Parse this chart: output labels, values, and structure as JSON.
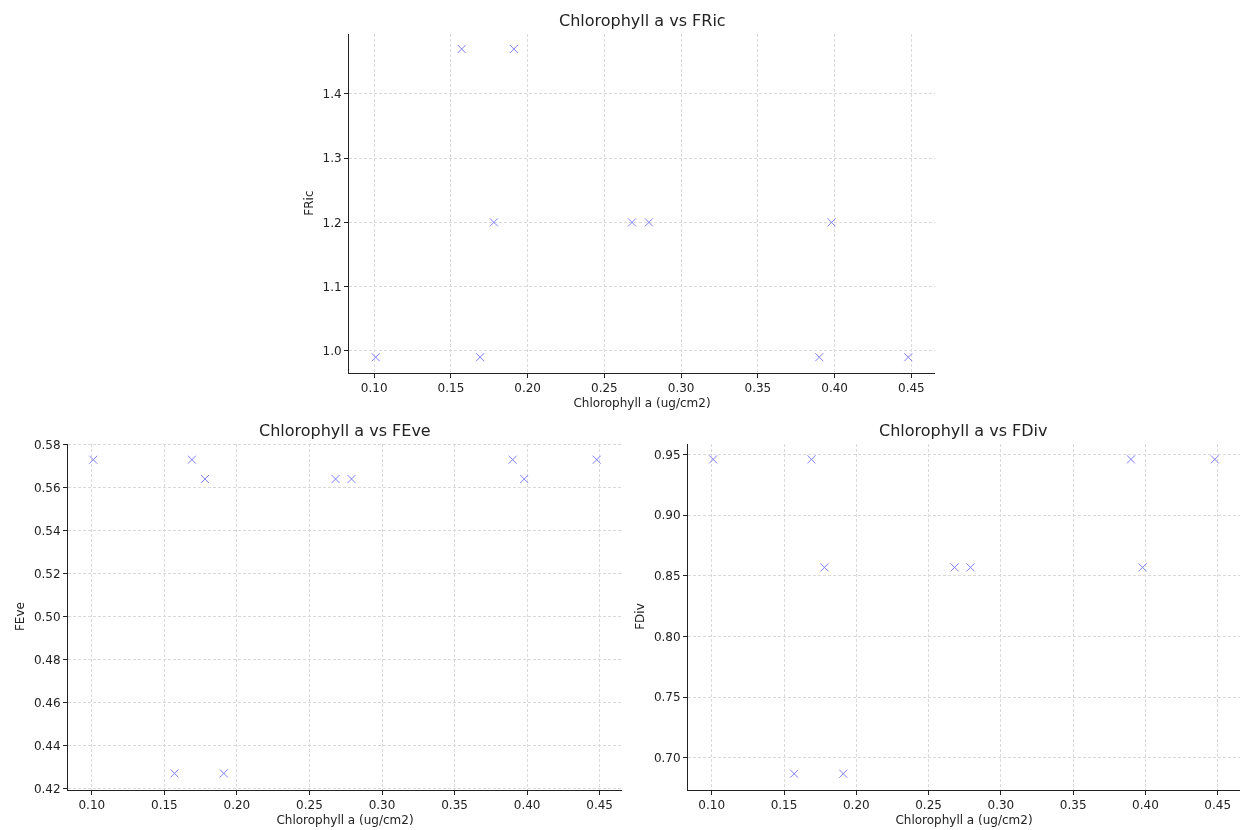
{
  "chart_data": [
    {
      "type": "scatter",
      "title": "Chlorophyll a vs FRic",
      "xlabel": "Chlorophyll a (ug/cm2)",
      "ylabel": "FRic",
      "x": [
        0.101,
        0.157,
        0.169,
        0.178,
        0.191,
        0.268,
        0.279,
        0.39,
        0.398,
        0.448
      ],
      "series": [
        {
          "color": "#8080ff",
          "values": [
            0.99,
            1.47,
            0.99,
            1.2,
            1.47,
            1.2,
            1.2,
            0.99,
            1.2,
            0.99
          ]
        }
      ],
      "xlim": [
        0.0836,
        0.4654
      ],
      "xticks": [
        {
          "value": 0.1,
          "label": "0.10"
        },
        {
          "value": 0.15,
          "label": "0.15"
        },
        {
          "value": 0.2,
          "label": "0.20"
        },
        {
          "value": 0.25,
          "label": "0.25"
        },
        {
          "value": 0.3,
          "label": "0.30"
        },
        {
          "value": 0.35,
          "label": "0.35"
        },
        {
          "value": 0.4,
          "label": "0.40"
        },
        {
          "value": 0.45,
          "label": "0.45"
        }
      ],
      "ylim": [
        0.966,
        1.494
      ],
      "yticks": [
        {
          "value": 1.0,
          "label": "1.0"
        },
        1.1,
        1.2,
        1.3,
        1.4
      ],
      "grid": true,
      "marker": "cross"
    },
    {
      "type": "scatter",
      "title": "Chlorophyll a vs FEve",
      "xlabel": "Chlorophyll a (ug/cm2)",
      "ylabel": "FEve",
      "x": [
        0.101,
        0.157,
        0.169,
        0.178,
        0.191,
        0.268,
        0.279,
        0.39,
        0.398,
        0.448
      ],
      "series": [
        {
          "color": "#8080ff",
          "values": [
            0.573,
            0.427,
            0.573,
            0.564,
            0.427,
            0.564,
            0.564,
            0.573,
            0.564,
            0.573
          ]
        }
      ],
      "xlim": [
        0.0836,
        0.4654
      ],
      "xticks": [
        {
          "value": 0.1,
          "label": "0.10"
        },
        {
          "value": 0.15,
          "label": "0.15"
        },
        {
          "value": 0.2,
          "label": "0.20"
        },
        {
          "value": 0.25,
          "label": "0.25"
        },
        {
          "value": 0.3,
          "label": "0.30"
        },
        {
          "value": 0.35,
          "label": "0.35"
        },
        {
          "value": 0.4,
          "label": "0.40"
        },
        {
          "value": 0.45,
          "label": "0.45"
        }
      ],
      "ylim": [
        0.4195,
        0.5805
      ],
      "yticks": [
        {
          "value": 0.42,
          "label": "0.42"
        },
        0.44,
        0.46,
        0.48,
        {
          "value": 0.5,
          "label": "0.50"
        },
        0.52,
        0.54,
        0.56,
        {
          "value": 0.58,
          "label": "0.58"
        }
      ],
      "grid": true,
      "marker": "cross"
    },
    {
      "type": "scatter",
      "title": "Chlorophyll a vs FDiv",
      "xlabel": "Chlorophyll a (ug/cm2)",
      "ylabel": "FDiv",
      "x": [
        0.101,
        0.157,
        0.169,
        0.178,
        0.191,
        0.268,
        0.279,
        0.39,
        0.398,
        0.448
      ],
      "series": [
        {
          "color": "#8080ff",
          "values": [
            0.946,
            0.687,
            0.946,
            0.857,
            0.687,
            0.857,
            0.857,
            0.946,
            0.857,
            0.946
          ]
        }
      ],
      "xlim": [
        0.0836,
        0.4654
      ],
      "xticks": [
        {
          "value": 0.1,
          "label": "0.10"
        },
        {
          "value": 0.15,
          "label": "0.15"
        },
        {
          "value": 0.2,
          "label": "0.20"
        },
        {
          "value": 0.25,
          "label": "0.25"
        },
        {
          "value": 0.3,
          "label": "0.30"
        },
        {
          "value": 0.35,
          "label": "0.35"
        },
        {
          "value": 0.4,
          "label": "0.40"
        },
        {
          "value": 0.45,
          "label": "0.45"
        }
      ],
      "ylim": [
        0.674,
        0.959
      ],
      "yticks": [
        {
          "value": 0.7,
          "label": "0.70"
        },
        0.75,
        {
          "value": 0.8,
          "label": "0.80"
        },
        0.85,
        {
          "value": 0.9,
          "label": "0.90"
        },
        0.95
      ],
      "grid": true,
      "marker": "cross"
    }
  ]
}
